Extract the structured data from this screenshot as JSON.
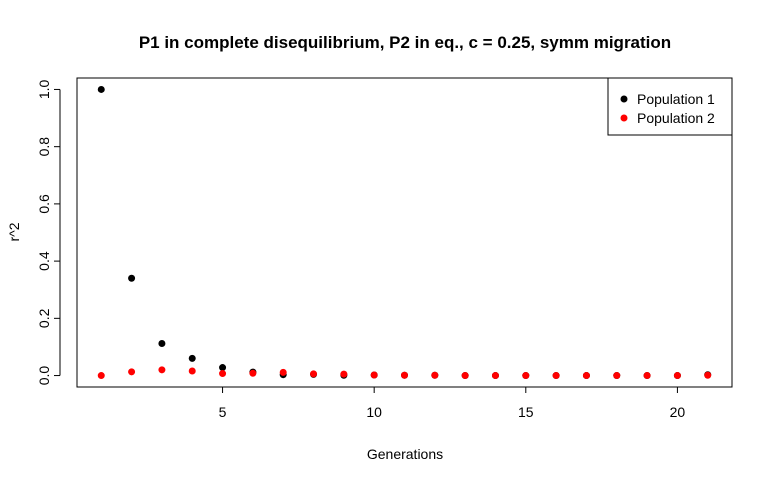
{
  "chart_data": {
    "type": "scatter",
    "title": "P1 in complete disequilibrium, P2 in eq., c = 0.25, symm migration",
    "xlabel": "Generations",
    "ylabel": "r^2",
    "xlim": [
      0.2,
      21.8
    ],
    "ylim": [
      -0.04,
      1.04
    ],
    "xticks": [
      5,
      10,
      15,
      20
    ],
    "yticks": [
      0.0,
      0.2,
      0.4,
      0.6,
      0.8,
      1.0
    ],
    "ytick_labels": [
      "0.0",
      "0.2",
      "0.4",
      "0.6",
      "0.8",
      "1.0"
    ],
    "legend_position": "top-right",
    "series": [
      {
        "name": "Population 1",
        "color": "#000000",
        "x": [
          1,
          2,
          3,
          4,
          5,
          6,
          7,
          8,
          9,
          10,
          11,
          12,
          13,
          14,
          15,
          16,
          17,
          18,
          19,
          20,
          21
        ],
        "y": [
          1.0,
          0.34,
          0.112,
          0.06,
          0.028,
          0.012,
          0.003,
          0.004,
          0.001,
          0.002,
          0.001,
          0.001,
          0.0,
          0.0,
          0.0,
          0.0,
          0.0,
          0.0,
          0.0,
          0.0,
          0.003
        ]
      },
      {
        "name": "Population 2",
        "color": "#ff0000",
        "x": [
          1,
          2,
          3,
          4,
          5,
          6,
          7,
          8,
          9,
          10,
          11,
          12,
          13,
          14,
          15,
          16,
          17,
          18,
          19,
          20,
          21
        ],
        "y": [
          0.0,
          0.013,
          0.02,
          0.016,
          0.007,
          0.008,
          0.011,
          0.006,
          0.005,
          0.002,
          0.001,
          0.001,
          0.0,
          0.0,
          0.0,
          0.0,
          0.0,
          0.0,
          0.0,
          0.0,
          0.001
        ]
      }
    ]
  }
}
